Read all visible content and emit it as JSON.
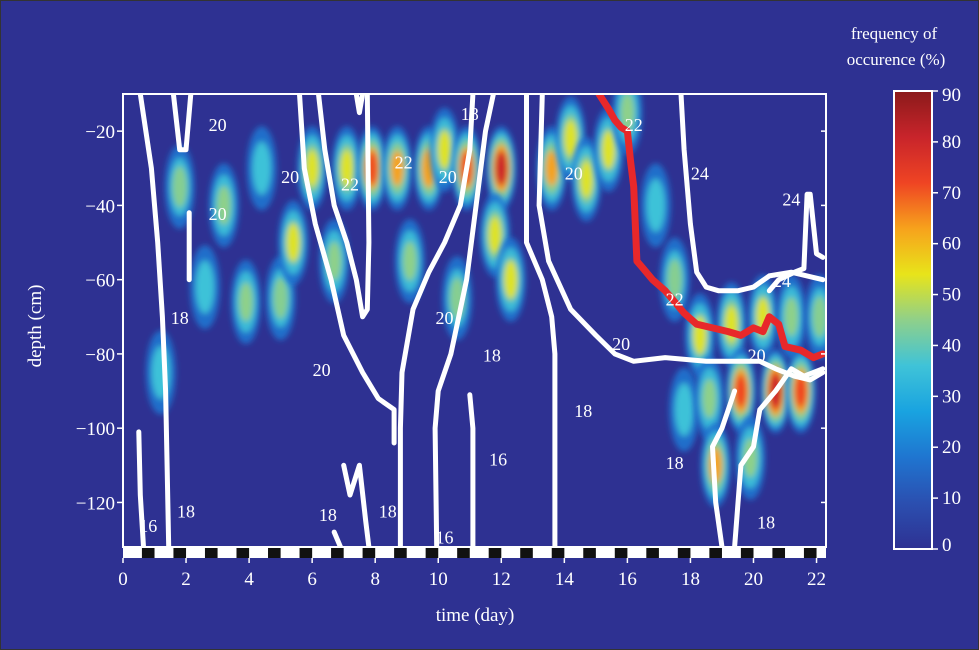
{
  "chart_data": {
    "type": "heatmap",
    "title": "",
    "xlabel": "time (day)",
    "ylabel": "depth (cm)",
    "xlim": [
      0,
      22.3
    ],
    "ylim": [
      -132,
      -10
    ],
    "x_ticks": [
      0,
      2,
      4,
      6,
      8,
      10,
      12,
      14,
      16,
      18,
      20,
      22
    ],
    "y_ticks": [
      -20,
      -40,
      -60,
      -80,
      -100,
      -120
    ],
    "y_tick_labels": [
      "−20",
      "−40",
      "−60",
      "−80",
      "−100",
      "−120"
    ],
    "colorbar": {
      "title_line1": "frequency of",
      "title_line2": "occurence (%)",
      "ticks": [
        0,
        10,
        20,
        30,
        40,
        50,
        60,
        70,
        80,
        90
      ],
      "colors": [
        "#2e3192",
        "#2b4fb0",
        "#1f75d0",
        "#19a3e0",
        "#3fc3d8",
        "#8fd08a",
        "#e8e41a",
        "#f7a21c",
        "#ef4423",
        "#c8242b",
        "#8b1a1a"
      ]
    },
    "grid": false,
    "day_night_bar": "alternating black and white segments along the bottom axis",
    "heat_spots": [
      {
        "x": 1.8,
        "y": -35,
        "v": 45
      },
      {
        "x": 1.2,
        "y": -85,
        "v": 40
      },
      {
        "x": 2.6,
        "y": -62,
        "v": 40
      },
      {
        "x": 3.2,
        "y": -40,
        "v": 50
      },
      {
        "x": 3.9,
        "y": -66,
        "v": 50
      },
      {
        "x": 4.4,
        "y": -30,
        "v": 40
      },
      {
        "x": 5.0,
        "y": -65,
        "v": 45
      },
      {
        "x": 5.4,
        "y": -50,
        "v": 55
      },
      {
        "x": 6.0,
        "y": -30,
        "v": 60
      },
      {
        "x": 6.7,
        "y": -55,
        "v": 50
      },
      {
        "x": 7.1,
        "y": -30,
        "v": 60
      },
      {
        "x": 7.9,
        "y": -30,
        "v": 75
      },
      {
        "x": 8.7,
        "y": -30,
        "v": 65
      },
      {
        "x": 9.1,
        "y": -55,
        "v": 50
      },
      {
        "x": 9.7,
        "y": -30,
        "v": 70
      },
      {
        "x": 10.2,
        "y": -25,
        "v": 55
      },
      {
        "x": 10.9,
        "y": -30,
        "v": 75
      },
      {
        "x": 10.6,
        "y": -65,
        "v": 45
      },
      {
        "x": 12.0,
        "y": -30,
        "v": 85
      },
      {
        "x": 11.8,
        "y": -48,
        "v": 60
      },
      {
        "x": 12.3,
        "y": -60,
        "v": 55
      },
      {
        "x": 13.6,
        "y": -30,
        "v": 65
      },
      {
        "x": 14.2,
        "y": -22,
        "v": 60
      },
      {
        "x": 14.7,
        "y": -33,
        "v": 60
      },
      {
        "x": 15.4,
        "y": -25,
        "v": 55
      },
      {
        "x": 16.0,
        "y": -15,
        "v": 50
      },
      {
        "x": 16.9,
        "y": -40,
        "v": 40
      },
      {
        "x": 17.5,
        "y": -60,
        "v": 45
      },
      {
        "x": 17.8,
        "y": -95,
        "v": 40
      },
      {
        "x": 18.3,
        "y": -75,
        "v": 55
      },
      {
        "x": 18.6,
        "y": -92,
        "v": 50
      },
      {
        "x": 18.8,
        "y": -110,
        "v": 65
      },
      {
        "x": 19.3,
        "y": -72,
        "v": 60
      },
      {
        "x": 19.6,
        "y": -90,
        "v": 80
      },
      {
        "x": 19.9,
        "y": -108,
        "v": 50
      },
      {
        "x": 20.3,
        "y": -70,
        "v": 55
      },
      {
        "x": 20.7,
        "y": -90,
        "v": 90
      },
      {
        "x": 21.2,
        "y": -70,
        "v": 50
      },
      {
        "x": 21.5,
        "y": -90,
        "v": 80
      },
      {
        "x": 22.1,
        "y": -70,
        "v": 45
      }
    ],
    "series": [
      {
        "color": "#e8282a",
        "points": [
          [
            15.1,
            -10
          ],
          [
            15.4,
            -14
          ],
          [
            15.6,
            -17
          ],
          [
            15.8,
            -19
          ],
          [
            16.0,
            -20
          ],
          [
            16.1,
            -28
          ],
          [
            16.2,
            -35
          ],
          [
            16.25,
            -45
          ],
          [
            16.3,
            -55
          ],
          [
            16.5,
            -57
          ],
          [
            16.8,
            -60
          ],
          [
            17.2,
            -63
          ],
          [
            17.5,
            -66
          ],
          [
            17.8,
            -69
          ],
          [
            18.2,
            -72
          ],
          [
            18.7,
            -73
          ],
          [
            19.2,
            -74
          ],
          [
            19.6,
            -75
          ],
          [
            20.0,
            -73
          ],
          [
            20.3,
            -74
          ],
          [
            20.5,
            -70
          ],
          [
            20.8,
            -72
          ],
          [
            21.0,
            -78
          ],
          [
            21.5,
            -79
          ],
          [
            21.9,
            -81
          ],
          [
            22.2,
            -80
          ]
        ]
      }
    ],
    "isotherms": [
      {
        "points": [
          [
            0.55,
            -10
          ],
          [
            0.9,
            -30
          ],
          [
            1.1,
            -50
          ],
          [
            1.25,
            -70
          ],
          [
            1.35,
            -90
          ],
          [
            1.4,
            -110
          ],
          [
            1.45,
            -132
          ]
        ]
      },
      {
        "points": [
          [
            1.6,
            -10
          ],
          [
            1.8,
            -25
          ],
          [
            2.0,
            -25
          ],
          [
            2.15,
            -10
          ]
        ]
      },
      {
        "points": [
          [
            2.1,
            -42
          ],
          [
            2.1,
            -60
          ]
        ]
      },
      {
        "points": [
          [
            0.5,
            -101
          ],
          [
            0.55,
            -118
          ],
          [
            0.65,
            -132
          ]
        ]
      },
      {
        "points": [
          [
            5.6,
            -10
          ],
          [
            5.75,
            -30
          ],
          [
            6.1,
            -45
          ],
          [
            6.6,
            -60
          ],
          [
            7.0,
            -75
          ],
          [
            7.6,
            -85
          ],
          [
            8.1,
            -92
          ],
          [
            8.6,
            -95
          ],
          [
            8.6,
            -104
          ]
        ]
      },
      {
        "points": [
          [
            6.2,
            -10
          ],
          [
            6.4,
            -25
          ],
          [
            6.7,
            -40
          ],
          [
            7.1,
            -50
          ],
          [
            7.4,
            -60
          ],
          [
            7.6,
            -70
          ],
          [
            7.75,
            -68
          ],
          [
            7.8,
            -50
          ],
          [
            7.75,
            -10
          ]
        ]
      },
      {
        "points": [
          [
            7.4,
            -10
          ],
          [
            7.5,
            -15
          ],
          [
            7.6,
            -10
          ]
        ]
      },
      {
        "points": [
          [
            11.1,
            -10
          ],
          [
            11.0,
            -25
          ],
          [
            10.7,
            -40
          ],
          [
            10.2,
            -50
          ],
          [
            9.7,
            -58
          ],
          [
            9.2,
            -68
          ],
          [
            8.85,
            -85
          ],
          [
            8.8,
            -100
          ],
          [
            8.8,
            -132
          ]
        ]
      },
      {
        "points": [
          [
            11.75,
            -10
          ],
          [
            11.5,
            -20
          ],
          [
            11.2,
            -40
          ],
          [
            10.9,
            -60
          ],
          [
            10.4,
            -80
          ],
          [
            10.0,
            -90
          ],
          [
            9.9,
            -100
          ],
          [
            9.95,
            -132
          ]
        ]
      },
      {
        "points": [
          [
            12.8,
            -10
          ],
          [
            12.8,
            -50
          ],
          [
            13.3,
            -60
          ],
          [
            13.6,
            -70
          ],
          [
            13.7,
            -80
          ],
          [
            13.7,
            -100
          ],
          [
            13.7,
            -132
          ]
        ]
      },
      {
        "points": [
          [
            11.0,
            -91
          ],
          [
            11.1,
            -100
          ],
          [
            11.1,
            -132
          ]
        ]
      },
      {
        "points": [
          [
            13.3,
            -10
          ],
          [
            13.2,
            -40
          ],
          [
            13.5,
            -55
          ],
          [
            14.2,
            -68
          ],
          [
            15.0,
            -75
          ],
          [
            15.6,
            -80
          ],
          [
            16.2,
            -82
          ],
          [
            17.2,
            -81
          ],
          [
            18.5,
            -82
          ],
          [
            19.5,
            -82
          ],
          [
            20.2,
            -82
          ],
          [
            20.7,
            -84
          ],
          [
            21.3,
            -86
          ],
          [
            21.8,
            -87
          ],
          [
            22.2,
            -85
          ]
        ]
      },
      {
        "points": [
          [
            17.7,
            -10
          ],
          [
            17.8,
            -25
          ],
          [
            18.0,
            -45
          ],
          [
            18.2,
            -58
          ],
          [
            18.5,
            -62
          ],
          [
            18.9,
            -63
          ],
          [
            19.5,
            -63
          ],
          [
            20.0,
            -62
          ],
          [
            20.5,
            -59
          ],
          [
            21.2,
            -58
          ],
          [
            22.2,
            -60
          ]
        ]
      },
      {
        "points": [
          [
            20.5,
            -63
          ],
          [
            20.8,
            -60
          ],
          [
            21.3,
            -58
          ],
          [
            21.6,
            -57
          ],
          [
            21.7,
            -37
          ],
          [
            21.8,
            -37
          ],
          [
            22.0,
            -53
          ],
          [
            22.2,
            -54
          ]
        ]
      },
      {
        "points": [
          [
            19.0,
            -132
          ],
          [
            18.8,
            -120
          ],
          [
            18.7,
            -105
          ],
          [
            19.0,
            -100
          ],
          [
            19.4,
            -90
          ]
        ]
      },
      {
        "points": [
          [
            19.4,
            -132
          ],
          [
            19.6,
            -110
          ],
          [
            20.0,
            -105
          ],
          [
            20.2,
            -95
          ],
          [
            20.7,
            -90
          ],
          [
            21.2,
            -84
          ],
          [
            21.6,
            -86
          ],
          [
            22.2,
            -84
          ]
        ]
      },
      {
        "points": [
          [
            7.0,
            -110
          ],
          [
            7.2,
            -118
          ],
          [
            7.5,
            -110
          ],
          [
            7.7,
            -125
          ],
          [
            7.8,
            -132
          ]
        ]
      },
      {
        "points": [
          [
            6.7,
            -128
          ],
          [
            6.9,
            -132
          ]
        ]
      }
    ],
    "isotherm_labels": [
      {
        "text": "20",
        "x": 3.0,
        "y": -20
      },
      {
        "text": "20",
        "x": 5.3,
        "y": -34
      },
      {
        "text": "22",
        "x": 7.2,
        "y": -36
      },
      {
        "text": "22",
        "x": 8.9,
        "y": -30
      },
      {
        "text": "20",
        "x": 3.0,
        "y": -44
      },
      {
        "text": "20",
        "x": 10.3,
        "y": -34
      },
      {
        "text": "18",
        "x": 11.0,
        "y": -17
      },
      {
        "text": "20",
        "x": 14.3,
        "y": -33
      },
      {
        "text": "22",
        "x": 16.2,
        "y": -20
      },
      {
        "text": "24",
        "x": 18.3,
        "y": -33
      },
      {
        "text": "24",
        "x": 20.9,
        "y": -62
      },
      {
        "text": "24",
        "x": 21.2,
        "y": -40
      },
      {
        "text": "22",
        "x": 17.5,
        "y": -67
      },
      {
        "text": "18",
        "x": 1.8,
        "y": -72
      },
      {
        "text": "20",
        "x": 6.3,
        "y": -86
      },
      {
        "text": "20",
        "x": 10.2,
        "y": -72
      },
      {
        "text": "18",
        "x": 11.7,
        "y": -82
      },
      {
        "text": "20",
        "x": 15.8,
        "y": -79
      },
      {
        "text": "20",
        "x": 20.1,
        "y": -82
      },
      {
        "text": "18",
        "x": 14.6,
        "y": -97
      },
      {
        "text": "16",
        "x": 11.9,
        "y": -110
      },
      {
        "text": "18",
        "x": 17.5,
        "y": -111
      },
      {
        "text": "18",
        "x": 20.4,
        "y": -127
      },
      {
        "text": "18",
        "x": 2.0,
        "y": -124
      },
      {
        "text": "18",
        "x": 6.5,
        "y": -125
      },
      {
        "text": "18",
        "x": 8.4,
        "y": -124
      },
      {
        "text": "16",
        "x": 10.2,
        "y": -131
      },
      {
        "text": "16",
        "x": 0.8,
        "y": -128
      }
    ]
  }
}
